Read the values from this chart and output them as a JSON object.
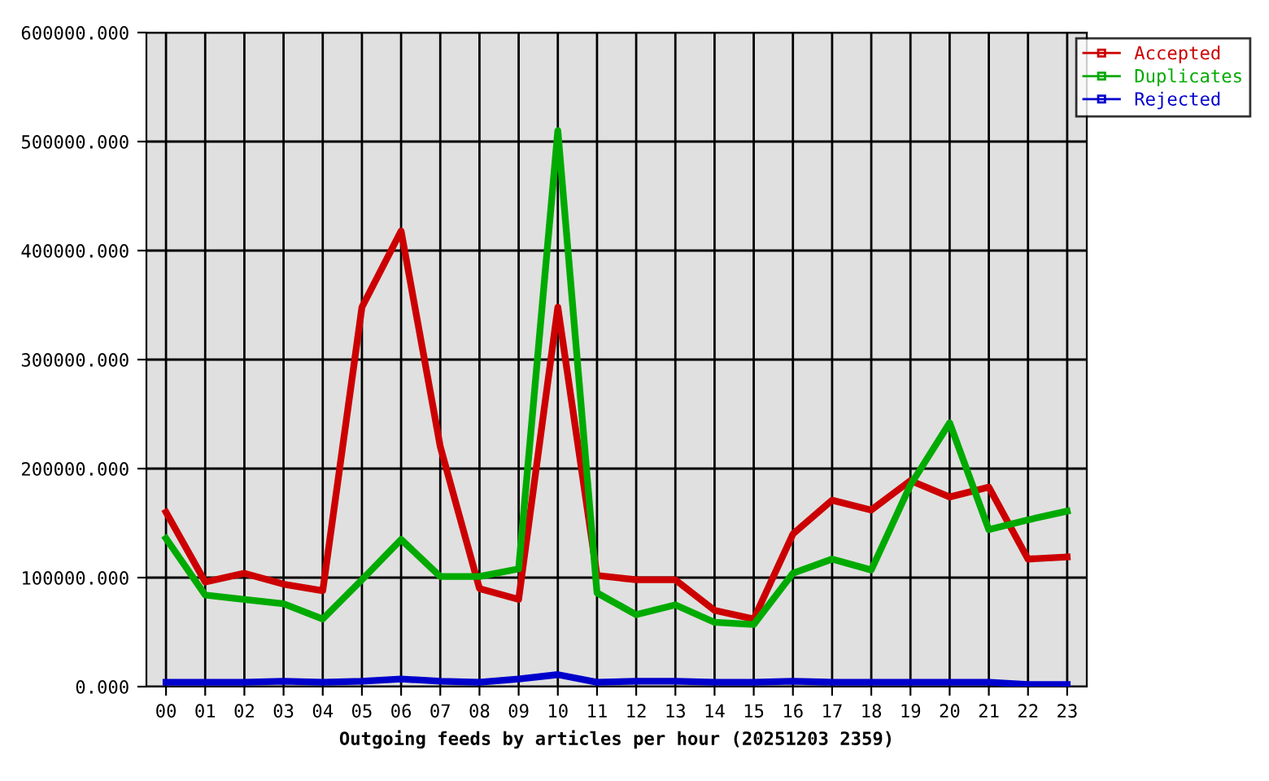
{
  "chart_data": {
    "type": "line",
    "xlabel": "Outgoing feeds by articles per hour (20251203 2359)",
    "categories": [
      "00",
      "01",
      "02",
      "03",
      "04",
      "05",
      "06",
      "07",
      "08",
      "09",
      "10",
      "11",
      "12",
      "13",
      "14",
      "15",
      "16",
      "17",
      "18",
      "19",
      "20",
      "21",
      "22",
      "23"
    ],
    "series": [
      {
        "name": "Accepted",
        "color": "#cc0000",
        "values": [
          160000,
          96000,
          104000,
          94000,
          88000,
          348000,
          418000,
          220000,
          90000,
          80000,
          348000,
          102000,
          98000,
          98000,
          70000,
          62000,
          140000,
          171000,
          162000,
          189000,
          174000,
          183000,
          117000,
          119000
        ]
      },
      {
        "name": "Duplicates",
        "color": "#00aa00",
        "values": [
          136000,
          84000,
          80000,
          76000,
          62000,
          98000,
          135000,
          101000,
          101000,
          108000,
          510000,
          86000,
          66000,
          75000,
          59000,
          57000,
          104000,
          117000,
          107000,
          185000,
          242000,
          144000,
          153000,
          161000
        ]
      },
      {
        "name": "Rejected",
        "color": "#0000cc",
        "values": [
          4000,
          4000,
          4000,
          5000,
          4000,
          5000,
          7000,
          5000,
          4000,
          7000,
          11000,
          4000,
          5000,
          5000,
          4000,
          4000,
          5000,
          4000,
          4000,
          4000,
          4000,
          4000,
          2000,
          2000
        ]
      }
    ],
    "ylim": [
      0,
      600000
    ],
    "yticks": [
      {
        "value": 0,
        "label": "0.000"
      },
      {
        "value": 100000,
        "label": "100000.000"
      },
      {
        "value": 200000,
        "label": "200000.000"
      },
      {
        "value": 300000,
        "label": "300000.000"
      },
      {
        "value": 400000,
        "label": "400000.000"
      },
      {
        "value": 500000,
        "label": "500000.000"
      },
      {
        "value": 600000,
        "label": "600000.000"
      }
    ],
    "grid": true,
    "legend": "top right",
    "marker": "none",
    "line_style": "solid"
  }
}
